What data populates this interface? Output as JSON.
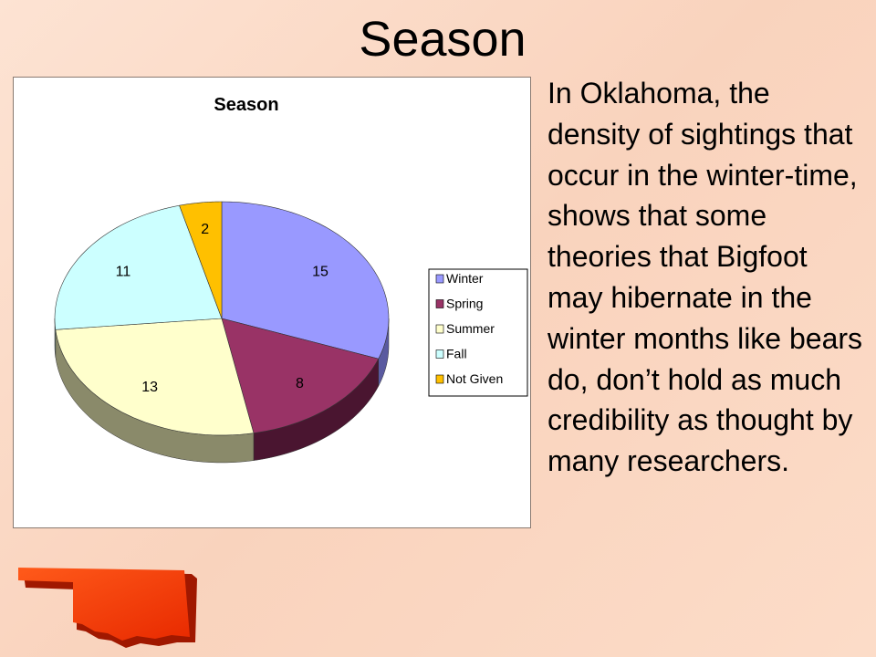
{
  "slide": {
    "title": "Season",
    "body": "In Oklahoma, the density of sightings that occur in the winter-time, shows that some theories that Bigfoot may hibernate in the winter months like bears do, don’t hold as much credibility as thought by many researchers.",
    "image": "oklahoma-map-icon"
  },
  "chart_data": {
    "type": "pie",
    "style": "3d",
    "title": "Season",
    "categories": [
      "Winter",
      "Spring",
      "Summer",
      "Fall",
      "Not Given"
    ],
    "values": [
      15,
      8,
      13,
      11,
      2
    ],
    "data_labels": [
      "15",
      "8",
      "13",
      "11",
      "2"
    ],
    "colors": [
      "#9999ff",
      "#993366",
      "#ffffcc",
      "#ccffff",
      "#ffc000"
    ],
    "side_colors": [
      "#5a5aa0",
      "#4a1530",
      "#8a8a6a",
      "#7aa0a0",
      "#a07800"
    ],
    "start_angle": "12 o'clock, clockwise",
    "legend_position": "right"
  }
}
